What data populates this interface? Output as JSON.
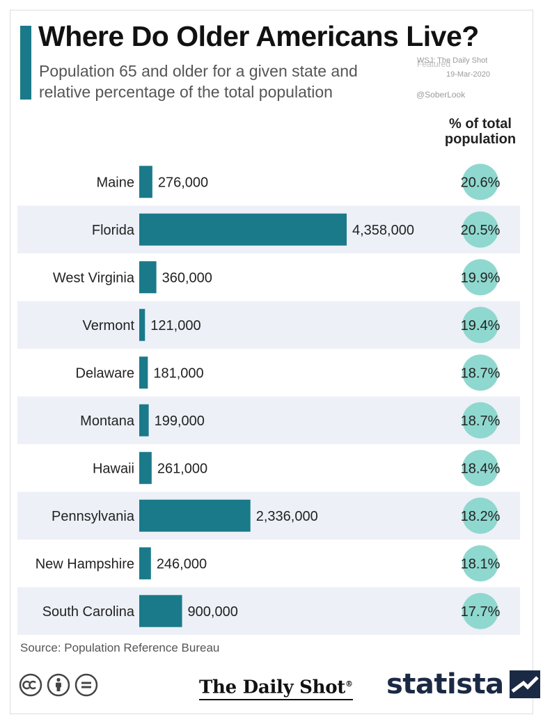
{
  "header": {
    "title": "Where Do Older Americans Live?",
    "subtitle_line1": "Population 65 and older for a given state and",
    "subtitle_line2": "relative percentage of the total population",
    "watermark_featured": "Featured",
    "watermark_source": "WSJ: The Daily Shot",
    "watermark_date": "19-Mar-2020",
    "watermark_handle": "@SoberLook"
  },
  "pct_header": {
    "line1": "% of total",
    "line2": "population"
  },
  "footer": {
    "source": "Source: Population Reference Bureau",
    "dailyshot": "The Daily Shot",
    "dailyshot_mark": "®",
    "statista": "statista"
  },
  "colors": {
    "bar": "#1a7a8a",
    "circle": "#8fd8cf",
    "band": "#edf0f7",
    "accent": "#1a7a8a",
    "statista": "#1b2a44"
  },
  "chart_data": {
    "type": "bar",
    "orientation": "horizontal",
    "title": "Where Do Older Americans Live?",
    "subtitle": "Population 65 and older for a given state and relative percentage of the total population",
    "categories": [
      "Maine",
      "Florida",
      "West Virginia",
      "Vermont",
      "Delaware",
      "Montana",
      "Hawaii",
      "Pennsylvania",
      "New Hampshire",
      "South Carolina"
    ],
    "series": [
      {
        "name": "Population 65 and older",
        "values": [
          276000,
          4358000,
          360000,
          121000,
          181000,
          199000,
          261000,
          2336000,
          246000,
          900000
        ],
        "labels": [
          "276,000",
          "4,358,000",
          "360,000",
          "121,000",
          "181,000",
          "199,000",
          "261,000",
          "2,336,000",
          "246,000",
          "900,000"
        ]
      },
      {
        "name": "% of total population",
        "values": [
          20.6,
          20.5,
          19.9,
          19.4,
          18.7,
          18.7,
          18.4,
          18.2,
          18.1,
          17.7
        ],
        "labels": [
          "20.6%",
          "20.5%",
          "19.9%",
          "19.4%",
          "18.7%",
          "18.7%",
          "18.4%",
          "18.2%",
          "18.1%",
          "17.7%"
        ]
      }
    ],
    "xlim": [
      0,
      4358000
    ],
    "grid": false,
    "legend": "none"
  }
}
